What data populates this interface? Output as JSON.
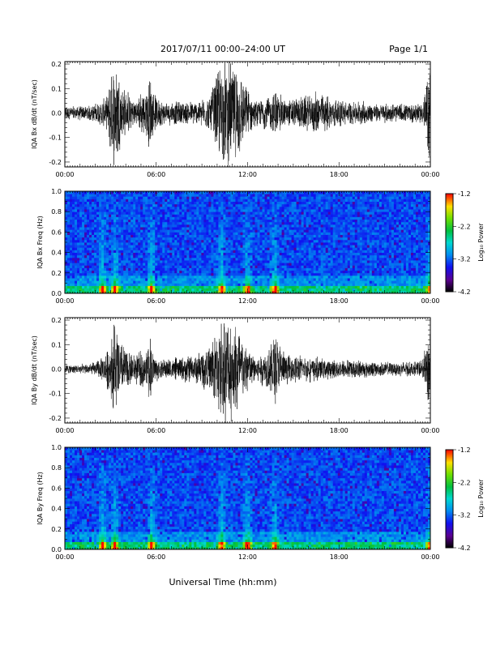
{
  "header": {
    "title": "2017/07/11   00:00–24:00 UT",
    "page": "Page 1/1"
  },
  "footer": {
    "xlabel": "Universal Time (hh:mm)"
  },
  "chart_data": [
    {
      "type": "line",
      "ylabel": "IQA Bx dB/dt (nT/sec)",
      "xlim": [
        0,
        24
      ],
      "ylim": [
        -0.22,
        0.21
      ],
      "x_ticks": [
        "00:00",
        "06:00",
        "12:00",
        "18:00",
        "00:00"
      ],
      "y_ticks": [
        "-0.2",
        "-0.1",
        "0.0",
        "0.1",
        "0.2"
      ],
      "series": [
        {
          "x": [
            0,
            1,
            2,
            2.8,
            3.1,
            3.4,
            3.8,
            4.5,
            5.3,
            5.6,
            5.9,
            6.5,
            7.5,
            8.5,
            9.5,
            10.2,
            10.7,
            11.3,
            11.8,
            12.5,
            13.3,
            13.8,
            14.5,
            15.5,
            16.5,
            17.5,
            18.5,
            19.5,
            20.5,
            21.5,
            22.5,
            23.5,
            24
          ],
          "amp": [
            0.03,
            0.03,
            0.04,
            0.07,
            0.22,
            0.22,
            0.12,
            0.06,
            0.1,
            0.16,
            0.08,
            0.05,
            0.05,
            0.05,
            0.07,
            0.22,
            0.22,
            0.22,
            0.12,
            0.05,
            0.07,
            0.1,
            0.06,
            0.07,
            0.09,
            0.07,
            0.05,
            0.05,
            0.04,
            0.04,
            0.04,
            0.05,
            0.22
          ]
        }
      ]
    },
    {
      "type": "heatmap",
      "ylabel": "IQA Bx Freq (Hz)",
      "xlim": [
        0,
        24
      ],
      "ylim": [
        0,
        1.0
      ],
      "x_ticks": [
        "00:00",
        "06:00",
        "12:00",
        "18:00",
        "00:00"
      ],
      "y_ticks": [
        "0.0",
        "0.2",
        "0.4",
        "0.6",
        "0.8",
        "1.0"
      ],
      "colorbar": {
        "label": "Log₁₀ Power",
        "range": [
          -4.2,
          -1.2
        ],
        "ticks": [
          "-1.2",
          "-2.2",
          "-3.2",
          "-4.2"
        ]
      },
      "activity_hours": [
        2.5,
        3.3,
        5.7,
        10.3,
        12.0,
        13.8,
        24.0
      ]
    },
    {
      "type": "line",
      "ylabel": "IQA By dB/dt (nT/sec)",
      "xlim": [
        0,
        24
      ],
      "ylim": [
        -0.22,
        0.21
      ],
      "x_ticks": [
        "00:00",
        "06:00",
        "12:00",
        "18:00",
        "00:00"
      ],
      "y_ticks": [
        "-0.2",
        "-0.1",
        "0.0",
        "0.1",
        "0.2"
      ],
      "series": [
        {
          "x": [
            0,
            1,
            2,
            2.5,
            3.0,
            3.3,
            3.7,
            4.5,
            5.3,
            5.6,
            5.9,
            6.5,
            7.5,
            8.5,
            9.5,
            10.2,
            10.7,
            11.3,
            11.8,
            12.5,
            13.3,
            13.8,
            14.5,
            15.5,
            16.5,
            17.5,
            18.5,
            19.5,
            20.5,
            21.5,
            22.5,
            23.5,
            24
          ],
          "amp": [
            0.02,
            0.02,
            0.03,
            0.05,
            0.12,
            0.22,
            0.12,
            0.06,
            0.08,
            0.15,
            0.06,
            0.04,
            0.05,
            0.06,
            0.1,
            0.22,
            0.22,
            0.22,
            0.12,
            0.06,
            0.08,
            0.16,
            0.06,
            0.06,
            0.05,
            0.04,
            0.04,
            0.04,
            0.03,
            0.03,
            0.03,
            0.04,
            0.22
          ]
        }
      ]
    },
    {
      "type": "heatmap",
      "ylabel": "IQA By Freq (Hz)",
      "xlim": [
        0,
        24
      ],
      "ylim": [
        0,
        1.0
      ],
      "x_ticks": [
        "00:00",
        "06:00",
        "12:00",
        "18:00",
        "00:00"
      ],
      "y_ticks": [
        "0.0",
        "0.2",
        "0.4",
        "0.6",
        "0.8",
        "1.0"
      ],
      "colorbar": {
        "label": "Log₁₀ Power",
        "range": [
          -4.2,
          -1.2
        ],
        "ticks": [
          "-1.2",
          "-2.2",
          "-3.2",
          "-4.2"
        ]
      },
      "activity_hours": [
        2.5,
        3.3,
        5.7,
        10.3,
        12.0,
        13.8,
        24.0
      ]
    }
  ]
}
